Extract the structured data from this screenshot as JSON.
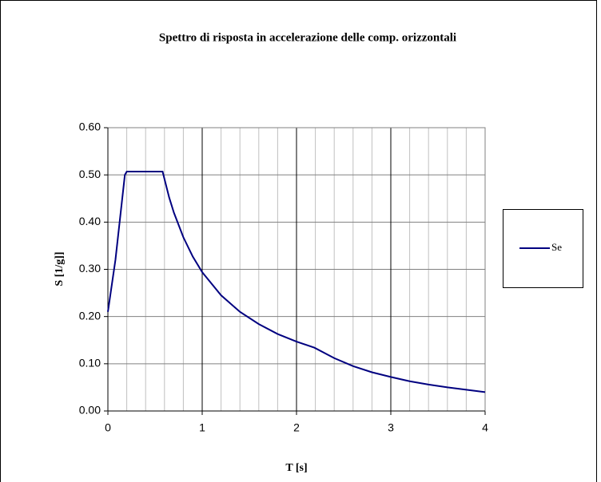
{
  "chart_data": {
    "type": "line",
    "title": "Spettro di risposta  in  accelerazione delle comp.  orizzontali",
    "xlabel": "T  [s]",
    "ylabel": "S [1/g]]",
    "x": [
      0,
      0.08,
      0.18,
      0.2,
      0.58,
      0.65,
      0.7,
      0.8,
      0.9,
      1.0,
      1.2,
      1.4,
      1.6,
      1.8,
      2.0,
      2.19,
      2.4,
      2.6,
      2.8,
      3.0,
      3.2,
      3.4,
      3.6,
      3.8,
      4.0
    ],
    "series": [
      {
        "name": "Se",
        "color": "#000080",
        "values": [
          0.21,
          0.32,
          0.5,
          0.507,
          0.507,
          0.452,
          0.42,
          0.368,
          0.327,
          0.294,
          0.245,
          0.21,
          0.184,
          0.163,
          0.147,
          0.134,
          0.112,
          0.095,
          0.082,
          0.072,
          0.063,
          0.056,
          0.05,
          0.045,
          0.04
        ]
      }
    ],
    "xlim": [
      0,
      4
    ],
    "xticks": [
      0,
      1,
      2,
      3,
      4
    ],
    "xminorticks": [
      0.2,
      0.4,
      0.6,
      0.8,
      1.2,
      1.4,
      1.6,
      1.8,
      2.2,
      2.4,
      2.6,
      2.8,
      3.2,
      3.4,
      3.6,
      3.8
    ],
    "ylim": [
      0,
      0.6
    ],
    "yticks": [
      {
        "value": 0,
        "label": "0.00"
      },
      {
        "value": 0.1,
        "label": "0.10"
      },
      {
        "value": 0.2,
        "label": "0.20"
      },
      {
        "value": 0.3,
        "label": "0.30"
      },
      {
        "value": 0.4,
        "label": "0.40"
      },
      {
        "value": 0.5,
        "label": "0.50"
      },
      {
        "value": 0.6,
        "label": "0.60"
      }
    ],
    "grid": true,
    "legend": "right"
  }
}
